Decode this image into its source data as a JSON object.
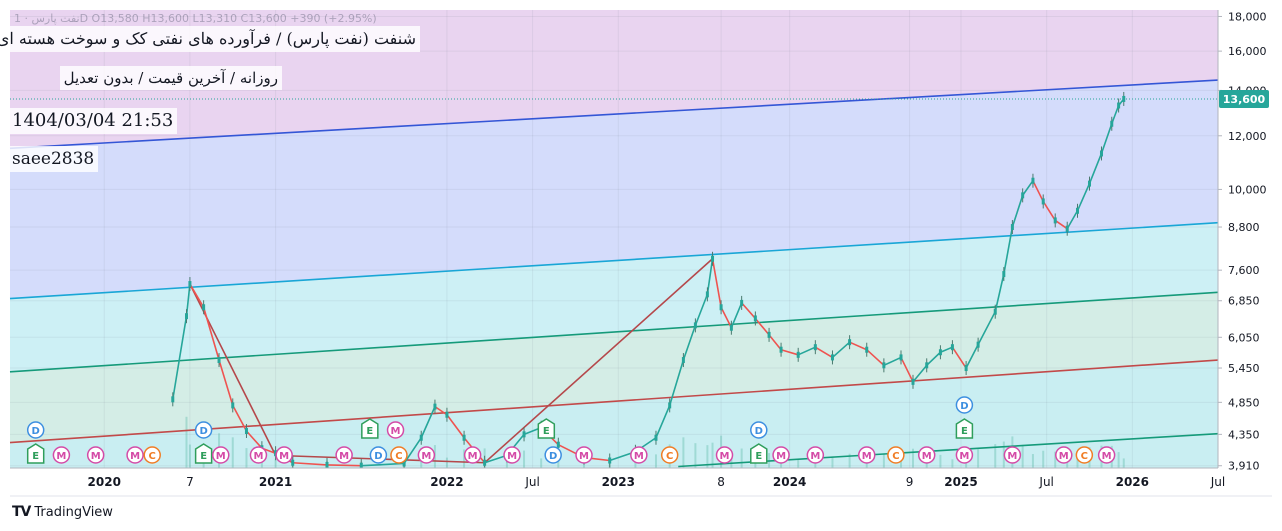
{
  "header": {
    "title": "شنفت (نفت پارس) / فرآورده های نفتی کک و سوخت هسته ای",
    "subtitle": "روزانه / آخرین قیمت / بدون تعدیل",
    "timestamp": "1404/03/04 21:53",
    "author": "saee2838",
    "ohlc": "نفت پارس · 1D  O13,580  H13,600  L13,310  C13,600  +390 (+2.95%)"
  },
  "brand": {
    "name": "TradingView",
    "logo_text": "TV"
  },
  "chart_data": {
    "type": "line",
    "title": "شنفت",
    "y_scale": "log",
    "ylim": [
      3880,
      18400
    ],
    "xlim": [
      2019.45,
      2026.5
    ],
    "y_ticks": [
      "18,000",
      "16,000",
      "14,000",
      "12,000",
      "10,000",
      "8,800",
      "7,600",
      "6,850",
      "6,050",
      "5,450",
      "4,850",
      "4,350",
      "3,910"
    ],
    "y_tick_values": [
      18000,
      16000,
      14000,
      12000,
      10000,
      8800,
      7600,
      6850,
      6050,
      5450,
      4850,
      4350,
      3910
    ],
    "x_ticks": [
      "2020",
      "7",
      "2021",
      "2022",
      "Jul",
      "2023",
      "8",
      "2024",
      "9",
      "2025",
      "Jul",
      "2026",
      "Jul"
    ],
    "x_tick_values": [
      2020.0,
      2020.5,
      2021.0,
      2022.0,
      2022.5,
      2023.0,
      2023.6,
      2024.0,
      2024.7,
      2025.0,
      2025.5,
      2026.0,
      2026.5
    ],
    "last_price": {
      "value": 13600,
      "label": "13,600"
    },
    "channel_lines": [
      {
        "name": "top-line",
        "color": "#3456d6",
        "points": [
          [
            2019.45,
            11500
          ],
          [
            2026.5,
            14500
          ]
        ]
      },
      {
        "name": "upper-mid-line",
        "color": "#19a6d6",
        "points": [
          [
            2019.45,
            6900
          ],
          [
            2026.5,
            8930
          ]
        ]
      },
      {
        "name": "mid-line",
        "color": "#159a7a",
        "points": [
          [
            2019.45,
            5380
          ],
          [
            2026.5,
            7050
          ]
        ]
      },
      {
        "name": "lower-line",
        "color": "#c24949",
        "points": [
          [
            2019.45,
            4230
          ],
          [
            2026.5,
            5600
          ]
        ]
      },
      {
        "name": "bottom-line",
        "color": "#159a7a",
        "points": [
          [
            2023.35,
            3900
          ],
          [
            2026.5,
            4360
          ]
        ]
      }
    ],
    "zigzag": [
      [
        2020.5,
        7250
      ],
      [
        2021.0,
        4050
      ],
      [
        2022.22,
        3950
      ],
      [
        2023.55,
        7900
      ]
    ],
    "price_series": [
      [
        2020.4,
        4900
      ],
      [
        2020.48,
        6500
      ],
      [
        2020.5,
        7250
      ],
      [
        2020.58,
        6700
      ],
      [
        2020.67,
        5600
      ],
      [
        2020.75,
        4800
      ],
      [
        2020.83,
        4400
      ],
      [
        2020.92,
        4150
      ],
      [
        2021.0,
        4080
      ],
      [
        2021.1,
        3950
      ],
      [
        2021.3,
        3920
      ],
      [
        2021.5,
        3910
      ],
      [
        2021.75,
        3940
      ],
      [
        2021.85,
        4300
      ],
      [
        2021.93,
        4780
      ],
      [
        2022.0,
        4650
      ],
      [
        2022.1,
        4300
      ],
      [
        2022.22,
        3950
      ],
      [
        2022.35,
        4050
      ],
      [
        2022.45,
        4350
      ],
      [
        2022.55,
        4450
      ],
      [
        2022.65,
        4200
      ],
      [
        2022.8,
        4020
      ],
      [
        2022.95,
        3980
      ],
      [
        2023.1,
        4100
      ],
      [
        2023.22,
        4300
      ],
      [
        2023.3,
        4800
      ],
      [
        2023.38,
        5600
      ],
      [
        2023.45,
        6300
      ],
      [
        2023.52,
        7000
      ],
      [
        2023.55,
        7900
      ],
      [
        2023.6,
        6700
      ],
      [
        2023.66,
        6250
      ],
      [
        2023.72,
        6800
      ],
      [
        2023.8,
        6450
      ],
      [
        2023.88,
        6100
      ],
      [
        2023.95,
        5800
      ],
      [
        2024.05,
        5700
      ],
      [
        2024.15,
        5850
      ],
      [
        2024.25,
        5650
      ],
      [
        2024.35,
        5950
      ],
      [
        2024.45,
        5800
      ],
      [
        2024.55,
        5500
      ],
      [
        2024.65,
        5650
      ],
      [
        2024.72,
        5200
      ],
      [
        2024.8,
        5500
      ],
      [
        2024.88,
        5750
      ],
      [
        2024.95,
        5850
      ],
      [
        2025.03,
        5450
      ],
      [
        2025.1,
        5900
      ],
      [
        2025.2,
        6600
      ],
      [
        2025.25,
        7500
      ],
      [
        2025.3,
        8800
      ],
      [
        2025.36,
        9800
      ],
      [
        2025.42,
        10300
      ],
      [
        2025.48,
        9600
      ],
      [
        2025.55,
        9000
      ],
      [
        2025.62,
        8750
      ],
      [
        2025.68,
        9300
      ],
      [
        2025.75,
        10200
      ],
      [
        2025.82,
        11300
      ],
      [
        2025.88,
        12500
      ],
      [
        2025.92,
        13300
      ],
      [
        2025.95,
        13600
      ]
    ],
    "event_markers": [
      {
        "label": "E",
        "x": 2019.6,
        "y": "low"
      },
      {
        "label": "D",
        "x": 2019.6,
        "y": "high"
      },
      {
        "label": "M",
        "x": 2019.75,
        "y": "low"
      },
      {
        "label": "M",
        "x": 2019.95,
        "y": "low"
      },
      {
        "label": "M",
        "x": 2020.18,
        "y": "low"
      },
      {
        "label": "C",
        "x": 2020.28,
        "y": "low"
      },
      {
        "label": "E",
        "x": 2020.58,
        "y": "low"
      },
      {
        "label": "D",
        "x": 2020.58,
        "y": "high"
      },
      {
        "label": "M",
        "x": 2020.68,
        "y": "low"
      },
      {
        "label": "M",
        "x": 2020.9,
        "y": "low"
      },
      {
        "label": "M",
        "x": 2021.05,
        "y": "low"
      },
      {
        "label": "M",
        "x": 2021.4,
        "y": "low"
      },
      {
        "label": "E",
        "x": 2021.55,
        "y": "high"
      },
      {
        "label": "D",
        "x": 2021.6,
        "y": "low"
      },
      {
        "label": "M",
        "x": 2021.7,
        "y": "high"
      },
      {
        "label": "C",
        "x": 2021.72,
        "y": "low"
      },
      {
        "label": "M",
        "x": 2021.88,
        "y": "low"
      },
      {
        "label": "M",
        "x": 2022.15,
        "y": "low"
      },
      {
        "label": "M",
        "x": 2022.38,
        "y": "low"
      },
      {
        "label": "E",
        "x": 2022.58,
        "y": "high"
      },
      {
        "label": "D",
        "x": 2022.62,
        "y": "low"
      },
      {
        "label": "M",
        "x": 2022.8,
        "y": "low"
      },
      {
        "label": "M",
        "x": 2023.12,
        "y": "low"
      },
      {
        "label": "C",
        "x": 2023.3,
        "y": "low"
      },
      {
        "label": "M",
        "x": 2023.62,
        "y": "low"
      },
      {
        "label": "E",
        "x": 2023.82,
        "y": "low"
      },
      {
        "label": "D",
        "x": 2023.82,
        "y": "high"
      },
      {
        "label": "M",
        "x": 2023.95,
        "y": "low"
      },
      {
        "label": "M",
        "x": 2024.15,
        "y": "low"
      },
      {
        "label": "M",
        "x": 2024.45,
        "y": "low"
      },
      {
        "label": "C",
        "x": 2024.62,
        "y": "low"
      },
      {
        "label": "M",
        "x": 2024.8,
        "y": "low"
      },
      {
        "label": "E",
        "x": 2025.02,
        "y": "high"
      },
      {
        "label": "D",
        "x": 2025.02,
        "y": "mid"
      },
      {
        "label": "M",
        "x": 2025.02,
        "y": "low"
      },
      {
        "label": "M",
        "x": 2025.3,
        "y": "low"
      },
      {
        "label": "M",
        "x": 2025.6,
        "y": "low"
      },
      {
        "label": "C",
        "x": 2025.72,
        "y": "low"
      },
      {
        "label": "M",
        "x": 2025.85,
        "y": "low"
      }
    ]
  }
}
